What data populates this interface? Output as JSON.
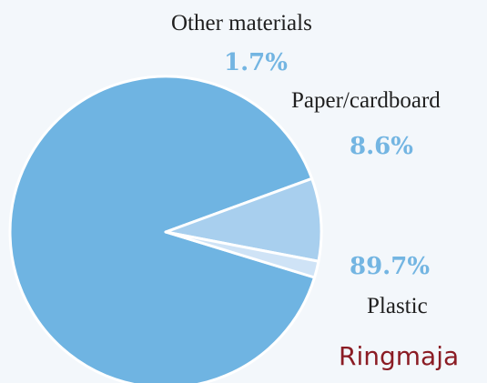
{
  "chart_data": {
    "type": "pie",
    "categories": [
      "Plastic",
      "Paper/cardboard",
      "Other materials"
    ],
    "values": [
      89.7,
      8.6,
      1.7
    ],
    "value_labels": [
      "89.7%",
      "8.6%",
      "1.7%"
    ],
    "title": "",
    "legend": "none",
    "colors": [
      "#6fb4e2",
      "#a8cfee",
      "#cfe3f6"
    ]
  },
  "footer": {
    "brand_text": "Ringmaja"
  },
  "style": {
    "background": "#f3f7fb",
    "label_color": "#1f1f1f",
    "percent_color": "#73b5e2",
    "brand_color": "#8b1c24",
    "slice_border": "#ffffff"
  }
}
